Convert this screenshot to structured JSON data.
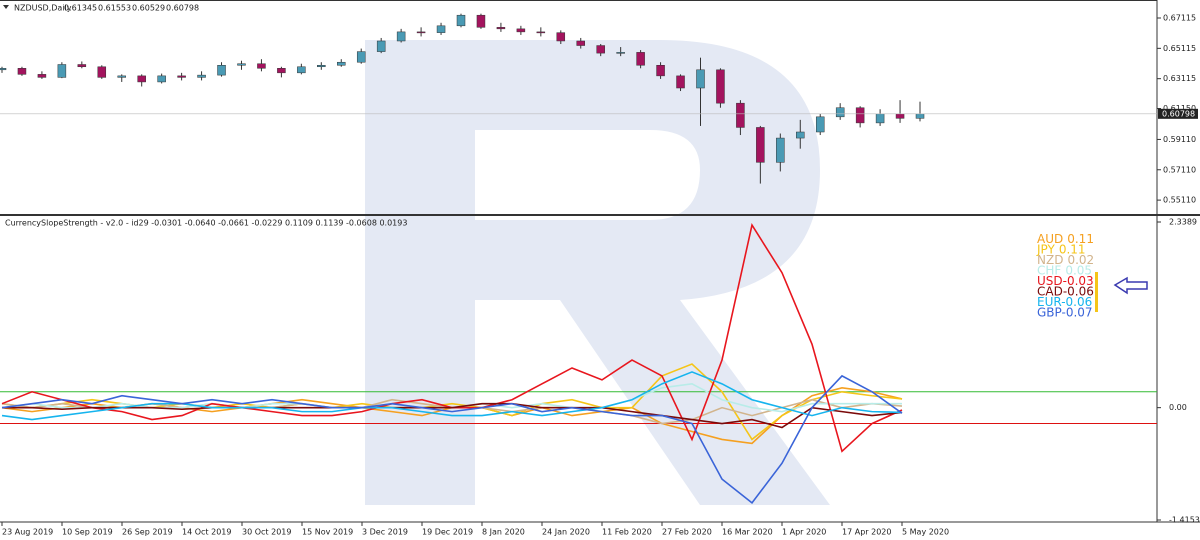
{
  "chart_data": [
    {
      "type": "candlestick",
      "title": "NZDUSD,Daily",
      "header_values": [
        0.61345,
        0.61553,
        0.60529,
        0.60798
      ],
      "up_color": "#4a9ab4",
      "down_color": "#a3145e",
      "xlim": [
        0,
        186
      ],
      "ylim": [
        0.5426,
        0.6817
      ],
      "yticks": [
        0.67115,
        0.65115,
        0.63115,
        {
          "value": 0.6115,
          "label": "0.61150"
        },
        {
          "value": 0.5911,
          "label": "0.59110"
        },
        {
          "value": 0.5711,
          "label": "0.57110"
        },
        {
          "value": 0.5511,
          "label": "0.55110"
        }
      ],
      "x": [
        0,
        4,
        8,
        12,
        16,
        20,
        24,
        28,
        32,
        36,
        40,
        44,
        48,
        52,
        56,
        60,
        64,
        68,
        72,
        76,
        80,
        84,
        88,
        92,
        96,
        100,
        104,
        108,
        112,
        116,
        120,
        124,
        128,
        132,
        136,
        140,
        144,
        148,
        152,
        156,
        160,
        164,
        168,
        172,
        176,
        180,
        184
      ],
      "open": [
        0.637,
        0.638,
        0.634,
        0.632,
        0.6405,
        0.639,
        0.632,
        0.633,
        0.629,
        0.633,
        0.632,
        0.6335,
        0.64,
        0.641,
        0.638,
        0.635,
        0.639,
        0.64,
        0.642,
        0.649,
        0.656,
        0.662,
        0.6615,
        0.666,
        0.673,
        0.665,
        0.664,
        0.662,
        0.6615,
        0.656,
        0.653,
        0.648,
        0.6485,
        0.64,
        0.633,
        0.625,
        0.637,
        0.615,
        0.599,
        0.576,
        0.592,
        0.596,
        0.606,
        0.612,
        0.602,
        0.608,
        0.605
      ],
      "high": [
        0.639,
        0.639,
        0.636,
        0.642,
        0.6425,
        0.64,
        0.634,
        0.634,
        0.6345,
        0.635,
        0.636,
        0.642,
        0.643,
        0.644,
        0.639,
        0.641,
        0.642,
        0.644,
        0.651,
        0.658,
        0.664,
        0.665,
        0.668,
        0.674,
        0.674,
        0.668,
        0.666,
        0.665,
        0.663,
        0.658,
        0.654,
        0.652,
        0.65,
        0.642,
        0.634,
        0.645,
        0.638,
        0.617,
        0.6,
        0.595,
        0.604,
        0.608,
        0.615,
        0.613,
        0.611,
        0.617,
        0.616
      ],
      "low": [
        0.635,
        0.633,
        0.631,
        0.6315,
        0.638,
        0.631,
        0.629,
        0.626,
        0.628,
        0.63,
        0.63,
        0.6325,
        0.637,
        0.636,
        0.632,
        0.634,
        0.637,
        0.639,
        0.641,
        0.648,
        0.655,
        0.659,
        0.66,
        0.665,
        0.664,
        0.662,
        0.66,
        0.659,
        0.654,
        0.651,
        0.646,
        0.646,
        0.638,
        0.631,
        0.623,
        0.6,
        0.612,
        0.594,
        0.562,
        0.57,
        0.585,
        0.594,
        0.604,
        0.599,
        0.6,
        0.602,
        0.603
      ],
      "close": [
        0.638,
        0.634,
        0.632,
        0.6405,
        0.639,
        0.632,
        0.633,
        0.629,
        0.633,
        0.632,
        0.6335,
        0.64,
        0.641,
        0.638,
        0.635,
        0.639,
        0.64,
        0.642,
        0.649,
        0.656,
        0.662,
        0.6615,
        0.666,
        0.673,
        0.665,
        0.664,
        0.662,
        0.6615,
        0.656,
        0.653,
        0.648,
        0.6485,
        0.64,
        0.633,
        0.625,
        0.637,
        0.615,
        0.599,
        0.576,
        0.592,
        0.596,
        0.606,
        0.612,
        0.602,
        0.608,
        0.605,
        0.608
      ]
    },
    {
      "type": "line",
      "title": "CurrencySlopeStrength - v2.0 - id29 -0.0301 -0.0640 -0.0661 -0.0229 0.1109 0.1139 -0.0608 0.0193",
      "xlim": [
        0,
        186
      ],
      "ylim": [
        -1.4153,
        2.3389
      ],
      "yticks": [
        2.3389,
        {
          "value": 0,
          "label": "0.00"
        },
        -1.4153
      ],
      "hlines": [
        {
          "value": 0.2,
          "color": "#33bb33"
        },
        {
          "value": -0.2,
          "color": "#dd1111"
        }
      ],
      "xticks": [
        {
          "value": 0,
          "label": "23 Aug 2019"
        },
        {
          "value": 12,
          "label": "10 Sep 2019"
        },
        {
          "value": 24,
          "label": "26 Sep 2019"
        },
        {
          "value": 36,
          "label": "14 Oct 2019"
        },
        {
          "value": 48,
          "label": "30 Oct 2019"
        },
        {
          "value": 60,
          "label": "15 Nov 2019"
        },
        {
          "value": 72,
          "label": "3 Dec 2019"
        },
        {
          "value": 84,
          "label": "19 Dec 2019"
        },
        {
          "value": 96,
          "label": "8 Jan 2020"
        },
        {
          "value": 108,
          "label": "24 Jan 2020"
        },
        {
          "value": 120,
          "label": "11 Feb 2020"
        },
        {
          "value": 132,
          "label": "27 Feb 2020"
        },
        {
          "value": 144,
          "label": "16 Mar 2020"
        },
        {
          "value": 156,
          "label": "1 Apr 2020"
        },
        {
          "value": 168,
          "label": "17 Apr 2020"
        },
        {
          "value": 180,
          "label": "5 May 2020"
        }
      ],
      "x": [
        0,
        6,
        12,
        18,
        24,
        30,
        36,
        42,
        48,
        54,
        60,
        66,
        72,
        78,
        84,
        90,
        96,
        102,
        108,
        114,
        120,
        126,
        132,
        138,
        144,
        150,
        156,
        162,
        168,
        174,
        180
      ],
      "series": [
        {
          "name": "AUD",
          "color": "#f5a020",
          "values": [
            0,
            -0.05,
            0,
            0.05,
            0,
            0.05,
            0,
            -0.05,
            0,
            0.05,
            0.1,
            0.05,
            0,
            -0.05,
            -0.1,
            0,
            0,
            -0.1,
            0,
            -0.1,
            -0.05,
            0,
            -0.2,
            -0.3,
            -0.4,
            -0.45,
            -0.1,
            0.15,
            0.25,
            0.2,
            0.11
          ]
        },
        {
          "name": "JPY",
          "color": "#f5c518",
          "values": [
            0.05,
            0,
            0.05,
            0.1,
            0.05,
            0,
            0.05,
            0,
            0.05,
            0,
            0.05,
            0,
            0.05,
            0,
            0,
            0.05,
            0,
            -0.1,
            0.05,
            0.1,
            0,
            0,
            0.4,
            0.55,
            0.2,
            -0.4,
            -0.1,
            0.1,
            0.2,
            0.15,
            0.11
          ]
        },
        {
          "name": "NZD",
          "color": "#d2b48c",
          "values": [
            0.05,
            0,
            0.05,
            0,
            0,
            0.05,
            0,
            0.05,
            0,
            0,
            0.05,
            0,
            0,
            0.1,
            0.05,
            0,
            0,
            -0.05,
            0,
            0,
            -0.05,
            -0.1,
            -0.2,
            -0.15,
            0,
            -0.1,
            0,
            0.1,
            0,
            0.05,
            0.02
          ]
        },
        {
          "name": "CHF",
          "color": "#b8ece8",
          "values": [
            0,
            0.05,
            0,
            0,
            0.05,
            0,
            0,
            0.05,
            0,
            0.05,
            0.05,
            0,
            0,
            0.05,
            0,
            0,
            0.05,
            0,
            0.05,
            0,
            0,
            0.1,
            0.25,
            0.3,
            0.1,
            0,
            -0.05,
            0.05,
            0.05,
            0.05,
            0.05
          ]
        },
        {
          "name": "USD",
          "color": "#e8161e",
          "values": [
            0.05,
            0.2,
            0.1,
            0,
            -0.05,
            -0.15,
            -0.1,
            0.05,
            0,
            -0.05,
            -0.1,
            -0.1,
            -0.05,
            0.05,
            0.1,
            0,
            0,
            0.1,
            0.3,
            0.5,
            0.35,
            0.6,
            0.4,
            -0.4,
            0.6,
            2.3,
            1.7,
            0.8,
            -0.55,
            -0.2,
            -0.03
          ]
        },
        {
          "name": "CAD",
          "color": "#7a0a0a",
          "values": [
            0,
            0,
            -0.02,
            0,
            0,
            0,
            -0.02,
            0,
            0,
            0,
            0,
            0,
            0,
            0,
            0,
            0,
            0.05,
            0.05,
            0,
            0,
            0,
            -0.05,
            -0.1,
            -0.15,
            -0.2,
            -0.15,
            -0.25,
            0,
            -0.05,
            -0.1,
            -0.06
          ]
        },
        {
          "name": "EUR",
          "color": "#16b4ee",
          "values": [
            -0.1,
            -0.15,
            -0.1,
            -0.05,
            0,
            0.05,
            0.05,
            0,
            0,
            0,
            -0.05,
            -0.05,
            0,
            0,
            -0.05,
            -0.1,
            -0.1,
            -0.05,
            -0.1,
            -0.05,
            0,
            0.1,
            0.3,
            0.45,
            0.3,
            0.1,
            0,
            -0.1,
            0,
            -0.05,
            -0.06
          ]
        },
        {
          "name": "GBP",
          "color": "#3a64d8",
          "values": [
            0,
            0.05,
            0.1,
            0.05,
            0.15,
            0.1,
            0.05,
            0.1,
            0.05,
            0.1,
            0.05,
            0,
            0,
            0.05,
            0,
            -0.05,
            0,
            0.05,
            -0.05,
            0,
            -0.05,
            -0.1,
            -0.1,
            -0.2,
            -0.9,
            -1.2,
            -0.7,
            0,
            0.4,
            0.2,
            -0.07
          ]
        }
      ]
    }
  ]
}
